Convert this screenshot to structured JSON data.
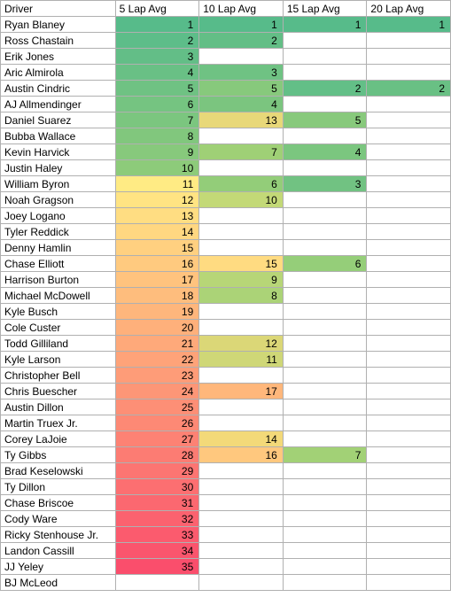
{
  "headers": [
    "Driver",
    "5 Lap Avg",
    "10 Lap Avg",
    "15 Lap Avg",
    "20 Lap Avg"
  ],
  "rows": [
    {
      "driver": "Ryan Blaney",
      "c5": {
        "v": 1,
        "bg": "#57bb8a"
      },
      "c10": {
        "v": 1,
        "bg": "#57bb8a"
      },
      "c15": {
        "v": 1,
        "bg": "#57bb8a"
      },
      "c20": {
        "v": 1,
        "bg": "#57bb8a"
      }
    },
    {
      "driver": "Ross Chastain",
      "c5": {
        "v": 2,
        "bg": "#5dbd89"
      },
      "c10": {
        "v": 2,
        "bg": "#63be86"
      },
      "c15": null,
      "c20": null
    },
    {
      "driver": "Erik Jones",
      "c5": {
        "v": 3,
        "bg": "#63be87"
      },
      "c10": null,
      "c15": null,
      "c20": null
    },
    {
      "driver": "Aric Almirola",
      "c5": {
        "v": 4,
        "bg": "#69c085"
      },
      "c10": {
        "v": 3,
        "bg": "#6fc283"
      },
      "c15": null,
      "c20": null
    },
    {
      "driver": "Austin Cindric",
      "c5": {
        "v": 5,
        "bg": "#6fc283"
      },
      "c10": {
        "v": 5,
        "bg": "#87c97c"
      },
      "c15": {
        "v": 2,
        "bg": "#63bf87"
      },
      "c20": {
        "v": 2,
        "bg": "#69c084"
      }
    },
    {
      "driver": "AJ Allmendinger",
      "c5": {
        "v": 6,
        "bg": "#75c481"
      },
      "c10": {
        "v": 4,
        "bg": "#7bc57f"
      },
      "c15": null,
      "c20": null
    },
    {
      "driver": "Daniel Suarez",
      "c5": {
        "v": 7,
        "bg": "#7bc67f"
      },
      "c10": {
        "v": 13,
        "bg": "#e8d879"
      },
      "c15": {
        "v": 5,
        "bg": "#88c97c"
      },
      "c20": null
    },
    {
      "driver": "Bubba Wallace",
      "c5": {
        "v": 8,
        "bg": "#81c77d"
      },
      "c10": null,
      "c15": null,
      "c20": null
    },
    {
      "driver": "Kevin Harvick",
      "c5": {
        "v": 9,
        "bg": "#87c97c"
      },
      "c10": {
        "v": 7,
        "bg": "#9fd076"
      },
      "c15": {
        "v": 4,
        "bg": "#7bc67f"
      },
      "c20": null
    },
    {
      "driver": "Justin Haley",
      "c5": {
        "v": 10,
        "bg": "#8dcb7a"
      },
      "c10": null,
      "c15": null,
      "c20": null
    },
    {
      "driver": "William Byron",
      "c5": {
        "v": 11,
        "bg": "#ffeb84"
      },
      "c10": {
        "v": 6,
        "bg": "#93cd79"
      },
      "c15": {
        "v": 3,
        "bg": "#71c282"
      },
      "c20": null
    },
    {
      "driver": "Noah Gragson",
      "c5": {
        "v": 12,
        "bg": "#ffe483"
      },
      "c10": {
        "v": 10,
        "bg": "#c3d977"
      },
      "c15": null,
      "c20": null
    },
    {
      "driver": "Joey Logano",
      "c5": {
        "v": 13,
        "bg": "#ffdd82"
      },
      "c10": null,
      "c15": null,
      "c20": null
    },
    {
      "driver": "Tyler Reddick",
      "c5": {
        "v": 14,
        "bg": "#ffd781"
      },
      "c10": null,
      "c15": null,
      "c20": null
    },
    {
      "driver": "Denny Hamlin",
      "c5": {
        "v": 15,
        "bg": "#ffd080"
      },
      "c10": null,
      "c15": null,
      "c20": null
    },
    {
      "driver": "Chase Elliott",
      "c5": {
        "v": 16,
        "bg": "#ffca7f"
      },
      "c10": {
        "v": 15,
        "bg": "#ffdb81"
      },
      "c15": {
        "v": 6,
        "bg": "#95ce79"
      },
      "c20": null
    },
    {
      "driver": "Harrison Burton",
      "c5": {
        "v": 17,
        "bg": "#ffc37e"
      },
      "c10": {
        "v": 9,
        "bg": "#b7d677"
      },
      "c15": null,
      "c20": null
    },
    {
      "driver": "Michael McDowell",
      "c5": {
        "v": 18,
        "bg": "#febd7d"
      },
      "c10": {
        "v": 8,
        "bg": "#abd377"
      },
      "c15": null,
      "c20": null
    },
    {
      "driver": "Kyle Busch",
      "c5": {
        "v": 19,
        "bg": "#feb67c"
      },
      "c10": null,
      "c15": null,
      "c20": null
    },
    {
      "driver": "Cole Custer",
      "c5": {
        "v": 20,
        "bg": "#feb07b"
      },
      "c10": null,
      "c15": null,
      "c20": null
    },
    {
      "driver": "Todd Gilliland",
      "c5": {
        "v": 21,
        "bg": "#fea97a"
      },
      "c10": {
        "v": 12,
        "bg": "#dbd777"
      },
      "c15": null,
      "c20": null
    },
    {
      "driver": "Kyle Larson",
      "c5": {
        "v": 22,
        "bg": "#fea379"
      },
      "c10": {
        "v": 11,
        "bg": "#cfd777"
      },
      "c15": null,
      "c20": null
    },
    {
      "driver": "Christopher Bell",
      "c5": {
        "v": 23,
        "bg": "#fe9c78"
      },
      "c10": null,
      "c15": null,
      "c20": null
    },
    {
      "driver": "Chris Buescher",
      "c5": {
        "v": 24,
        "bg": "#fd9677"
      },
      "c10": {
        "v": 17,
        "bg": "#ffb77b"
      },
      "c15": null,
      "c20": null
    },
    {
      "driver": "Austin Dillon",
      "c5": {
        "v": 25,
        "bg": "#fd8f76"
      },
      "c10": null,
      "c15": null,
      "c20": null
    },
    {
      "driver": "Martin Truex Jr.",
      "c5": {
        "v": 26,
        "bg": "#fd8975"
      },
      "c10": null,
      "c15": null,
      "c20": null
    },
    {
      "driver": "Corey LaJoie",
      "c5": {
        "v": 27,
        "bg": "#fd8274"
      },
      "c10": {
        "v": 14,
        "bg": "#f3d979"
      },
      "c15": null,
      "c20": null
    },
    {
      "driver": "Ty Gibbs",
      "c5": {
        "v": 28,
        "bg": "#fc7c73"
      },
      "c10": {
        "v": 16,
        "bg": "#ffc87e"
      },
      "c15": {
        "v": 7,
        "bg": "#a2d176"
      },
      "c20": null
    },
    {
      "driver": "Brad Keselowski",
      "c5": {
        "v": 29,
        "bg": "#fc7572"
      },
      "c10": null,
      "c15": null,
      "c20": null
    },
    {
      "driver": "Ty Dillon",
      "c5": {
        "v": 30,
        "bg": "#fc6f71"
      },
      "c10": null,
      "c15": null,
      "c20": null
    },
    {
      "driver": "Chase Briscoe",
      "c5": {
        "v": 31,
        "bg": "#fb6870"
      },
      "c10": null,
      "c15": null,
      "c20": null
    },
    {
      "driver": "Cody Ware",
      "c5": {
        "v": 32,
        "bg": "#fb626f"
      },
      "c10": null,
      "c15": null,
      "c20": null
    },
    {
      "driver": "Ricky Stenhouse Jr.",
      "c5": {
        "v": 33,
        "bg": "#fb5b6e"
      },
      "c10": null,
      "c15": null,
      "c20": null
    },
    {
      "driver": "Landon Cassill",
      "c5": {
        "v": 34,
        "bg": "#fa556d"
      },
      "c10": null,
      "c15": null,
      "c20": null
    },
    {
      "driver": "JJ Yeley",
      "c5": {
        "v": 35,
        "bg": "#fa4e6c"
      },
      "c10": null,
      "c15": null,
      "c20": null
    },
    {
      "driver": "BJ McLeod",
      "c5": null,
      "c10": null,
      "c15": null,
      "c20": null
    }
  ]
}
